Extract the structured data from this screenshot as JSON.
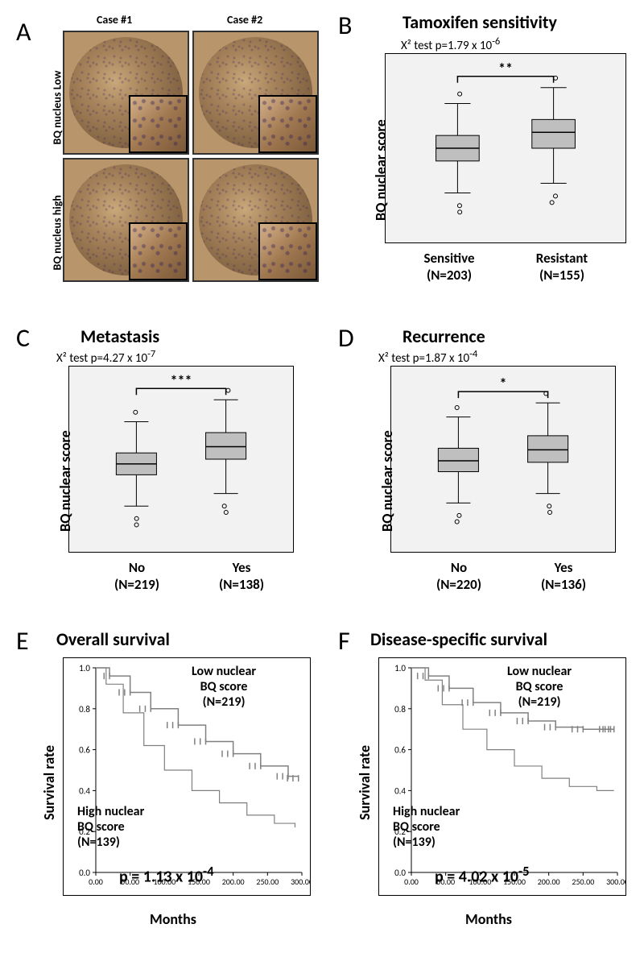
{
  "panelA": {
    "label": "A",
    "col1": "Case #1",
    "col2": "Case #2",
    "row1": "BQ nucleus Low",
    "row2": "BQ nucleus high"
  },
  "panelB": {
    "label": "B",
    "title": "Tamoxifen sensitivity",
    "stat_prefix": "X² test  p=1.79  x 10",
    "stat_exp": "-6",
    "ylabel": "BQ nuclear score",
    "cat1": "Sensitive",
    "cat1n": "(N=203)",
    "cat2": "Resistant",
    "cat2n": "(N=155)",
    "sig": "**",
    "box1": {
      "q1": 0.42,
      "med": 0.5,
      "q3": 0.58,
      "wlo": 0.22,
      "whi": 0.78
    },
    "box2": {
      "q1": 0.5,
      "med": 0.6,
      "q3": 0.68,
      "wlo": 0.28,
      "whi": 0.88
    },
    "colors": {
      "bg": "#f2f2f2",
      "box_fill": "#bfbfbf",
      "stroke": "#000000"
    }
  },
  "panelC": {
    "label": "C",
    "title": "Metastasis",
    "stat_prefix": "X² test  p=4.27  x 10",
    "stat_exp": "-7",
    "ylabel": "BQ nuclear score",
    "cat1": "No",
    "cat1n": "(N=219)",
    "cat2": "Yes",
    "cat2n": "(N=138)",
    "sig": "***",
    "box1": {
      "q1": 0.4,
      "med": 0.47,
      "q3": 0.54,
      "wlo": 0.2,
      "whi": 0.74
    },
    "box2": {
      "q1": 0.5,
      "med": 0.58,
      "q3": 0.67,
      "wlo": 0.28,
      "whi": 0.88
    },
    "colors": {
      "bg": "#f2f2f2",
      "box_fill": "#bfbfbf",
      "stroke": "#000000"
    }
  },
  "panelD": {
    "label": "D",
    "title": "Recurrence",
    "stat_prefix": "X² test  p=1.87  x 10",
    "stat_exp": "-4",
    "ylabel": "BQ nuclear score",
    "cat1": "No",
    "cat1n": "(N=220)",
    "cat2": "Yes",
    "cat2n": "(N=136)",
    "sig": "*",
    "box1": {
      "q1": 0.42,
      "med": 0.49,
      "q3": 0.57,
      "wlo": 0.22,
      "whi": 0.77
    },
    "box2": {
      "q1": 0.48,
      "med": 0.56,
      "q3": 0.65,
      "wlo": 0.28,
      "whi": 0.86
    },
    "colors": {
      "bg": "#f2f2f2",
      "box_fill": "#bfbfbf",
      "stroke": "#000000"
    }
  },
  "panelE": {
    "label": "E",
    "title": "Overall survival",
    "ylabel": "Survival rate",
    "xlabel": "Months",
    "pvalue_prefix": "p = 1.13 x 10",
    "pvalue_exp": "-4",
    "low_label_l1": "Low nuclear",
    "low_label_l2": "BQ score",
    "low_label_l3": "(N=219)",
    "high_label_l1": "High nuclear",
    "high_label_l2": "BQ score",
    "high_label_l3": "(N=139)",
    "xmax": 300,
    "yticks": [
      0.0,
      0.2,
      0.4,
      0.6,
      0.8,
      1.0
    ],
    "xticks": [
      0,
      50,
      100,
      150,
      200,
      250,
      300
    ],
    "curve_low": [
      [
        0,
        1.0
      ],
      [
        20,
        0.96
      ],
      [
        50,
        0.88
      ],
      [
        80,
        0.8
      ],
      [
        120,
        0.72
      ],
      [
        160,
        0.64
      ],
      [
        200,
        0.58
      ],
      [
        240,
        0.52
      ],
      [
        280,
        0.47
      ],
      [
        295,
        0.46
      ]
    ],
    "curve_high": [
      [
        0,
        1.0
      ],
      [
        15,
        0.92
      ],
      [
        40,
        0.78
      ],
      [
        70,
        0.62
      ],
      [
        100,
        0.5
      ],
      [
        140,
        0.4
      ],
      [
        180,
        0.34
      ],
      [
        220,
        0.28
      ],
      [
        260,
        0.24
      ],
      [
        290,
        0.22
      ]
    ],
    "colors": {
      "low": "#808080",
      "high": "#808080",
      "tick_color": "#808080"
    }
  },
  "panelF": {
    "label": "F",
    "title": "Disease-specific survival",
    "ylabel": "Survival rate",
    "xlabel": "Months",
    "pvalue_prefix": "p = 4.02 x 10",
    "pvalue_exp": "-5",
    "low_label_l1": "Low nuclear",
    "low_label_l2": "BQ score",
    "low_label_l3": "(N=219)",
    "high_label_l1": "High nuclear",
    "high_label_l2": "BQ score",
    "high_label_l3": "(N=139)",
    "xmax": 300,
    "yticks": [
      0.0,
      0.2,
      0.4,
      0.6,
      0.8,
      1.0
    ],
    "xticks": [
      0,
      50,
      100,
      150,
      200,
      250,
      300
    ],
    "curve_low": [
      [
        0,
        1.0
      ],
      [
        25,
        0.96
      ],
      [
        55,
        0.9
      ],
      [
        90,
        0.83
      ],
      [
        130,
        0.78
      ],
      [
        170,
        0.74
      ],
      [
        210,
        0.71
      ],
      [
        250,
        0.7
      ],
      [
        290,
        0.7
      ],
      [
        295,
        0.7
      ]
    ],
    "curve_high": [
      [
        0,
        1.0
      ],
      [
        20,
        0.94
      ],
      [
        45,
        0.82
      ],
      [
        75,
        0.7
      ],
      [
        110,
        0.6
      ],
      [
        150,
        0.52
      ],
      [
        190,
        0.46
      ],
      [
        230,
        0.42
      ],
      [
        270,
        0.4
      ],
      [
        295,
        0.4
      ]
    ],
    "colors": {
      "low": "#808080",
      "high": "#808080",
      "tick_color": "#808080"
    }
  }
}
